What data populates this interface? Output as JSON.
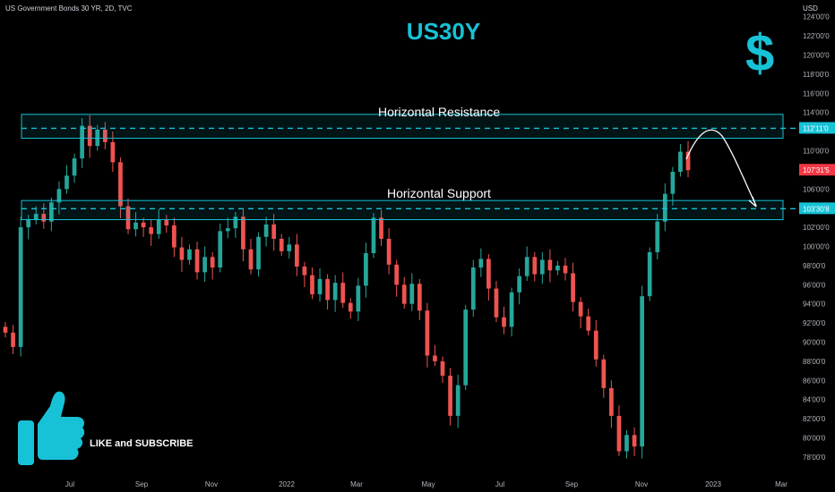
{
  "header": {
    "symbol_info": "US Government Bonds 30 YR, 2D, TVC",
    "currency": "USD"
  },
  "overlay": {
    "title": "US30Y",
    "dollar_icon": "dollar-sign-icon",
    "like_label": "LIKE and SUBSCRIBE",
    "thumbs_icon": "thumbs-up-icon",
    "resistance_label": "Horizontal Resistance",
    "support_label": "Horizontal Support",
    "accent_color": "#17c2d6"
  },
  "axis": {
    "y_ticks": [
      "124'00'0",
      "122'00'0",
      "120'00'0",
      "118'00'0",
      "116'00'0",
      "114'00'0",
      "110'00'0",
      "106'00'0",
      "104'00'0",
      "102'00'0",
      "100'00'0",
      "98'00'0",
      "96'00'0",
      "94'00'0",
      "92'00'0",
      "90'00'0",
      "88'00'0",
      "86'00'0",
      "84'00'0",
      "82'00'0",
      "80'00'0",
      "78'00'0"
    ],
    "x_ticks": [
      "Jul",
      "Sep",
      "Nov",
      "2022",
      "Mar",
      "May",
      "Jul",
      "Sep",
      "Nov",
      "2023",
      "Mar"
    ],
    "price_labels": [
      {
        "text": "112'11'0",
        "value": 112.34,
        "color": "#17c2d6"
      },
      {
        "text": "107'31'5",
        "value": 107.97,
        "color": "#f23645"
      },
      {
        "text": "103'30'8",
        "value": 103.94,
        "color": "#17c2d6"
      }
    ]
  },
  "chart_data": {
    "type": "candlestick",
    "title": "US30Y",
    "ylim": [
      77,
      125
    ],
    "resistance_zone": [
      111.3,
      113.8
    ],
    "resistance_level": 112.34,
    "support_zone": [
      102.8,
      104.8
    ],
    "support_level": 103.94,
    "up_color": "#26a69a",
    "down_color": "#ef5350",
    "projection": "rise to resistance then fall back to support",
    "series": [
      {
        "name": "close",
        "values": [
          91.0,
          89.5,
          102.0,
          102.8,
          103.4,
          102.6,
          104.6,
          106.0,
          107.4,
          109.2,
          112.6,
          110.5,
          112.2,
          110.9,
          108.8,
          104.2,
          101.8,
          102.5,
          102.0,
          101.3,
          102.8,
          102.2,
          99.9,
          98.6,
          99.7,
          97.3,
          98.9,
          97.8,
          101.6,
          101.9,
          103.1,
          99.7,
          97.6,
          101.0,
          102.3,
          100.8,
          99.5,
          100.2,
          97.9,
          97.0,
          95.0,
          96.6,
          94.4,
          96.2,
          94.1,
          93.2,
          95.9,
          99.3,
          103.0,
          100.8,
          98.1,
          96.0,
          94.0,
          96.1,
          93.3,
          88.6,
          88.0,
          86.5,
          82.3,
          85.5,
          93.4,
          97.8,
          98.7,
          95.6,
          92.6,
          91.6,
          95.2,
          96.9,
          98.9,
          97.1,
          98.6,
          97.5,
          98.0,
          97.2,
          94.2,
          92.7,
          91.2,
          88.2,
          85.2,
          82.3,
          78.6,
          80.3,
          79.1,
          94.8,
          99.4,
          102.6,
          105.5,
          107.8,
          109.9,
          107.97
        ]
      }
    ]
  }
}
